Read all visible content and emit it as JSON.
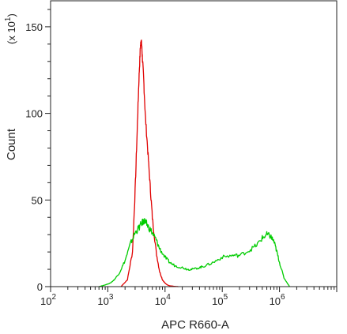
{
  "chart_data": {
    "type": "line",
    "title": "",
    "xlabel": "APC R660-A",
    "ylabel": "Count",
    "y_multiplier_label": "(x 10",
    "y_multiplier_exponent": "1",
    "y_multiplier_close": ")",
    "x_scale": "log",
    "xlim": [
      100,
      10000000
    ],
    "ylim": [
      0,
      165
    ],
    "x_ticks": [
      {
        "value": 100,
        "base": "10",
        "exp": "2"
      },
      {
        "value": 1000,
        "base": "10",
        "exp": "3"
      },
      {
        "value": 10000,
        "base": "10",
        "exp": "4"
      },
      {
        "value": 100000,
        "base": "10",
        "exp": "5"
      },
      {
        "value": 1000000,
        "base": "10",
        "exp": "6"
      }
    ],
    "y_ticks": [
      {
        "value": 0,
        "label": "0"
      },
      {
        "value": 50,
        "label": "50"
      },
      {
        "value": 100,
        "label": "100"
      },
      {
        "value": 150,
        "label": "150"
      }
    ],
    "grid": false,
    "legend": "none",
    "series": [
      {
        "color": "#e00000",
        "x": [
          1700,
          2200,
          2700,
          3000,
          3300,
          3500,
          3700,
          3800,
          3900,
          4000,
          4200,
          4500,
          5000,
          5500,
          6000,
          7000,
          8000,
          9000,
          10000,
          11000,
          12000,
          13500,
          15000,
          17000
        ],
        "y": [
          0,
          4,
          20,
          55,
          95,
          120,
          138,
          142,
          140,
          133,
          122,
          100,
          78,
          58,
          40,
          20,
          9,
          4,
          2,
          1,
          0.5,
          0.3,
          0.1,
          0
        ]
      },
      {
        "color": "#00cc00",
        "x": [
          700,
          900,
          1100,
          1300,
          1600,
          2000,
          2500,
          3000,
          3500,
          4000,
          4300,
          4600,
          5000,
          6000,
          7000,
          8000,
          10000,
          12000,
          15000,
          20000,
          25000,
          30000,
          40000,
          50000,
          70000,
          100000,
          150000,
          200000,
          300000,
          400000,
          500000,
          600000,
          700000,
          800000,
          900000,
          1000000,
          1200000,
          1500000
        ],
        "y": [
          0,
          1,
          2,
          4,
          8,
          15,
          25,
          31,
          34,
          37,
          38,
          37,
          35,
          31,
          27,
          22,
          17,
          14,
          12,
          11,
          10,
          10,
          11,
          12,
          14,
          17,
          18,
          18,
          21,
          24,
          28,
          30,
          29,
          26,
          20,
          14,
          5,
          0
        ]
      }
    ]
  }
}
